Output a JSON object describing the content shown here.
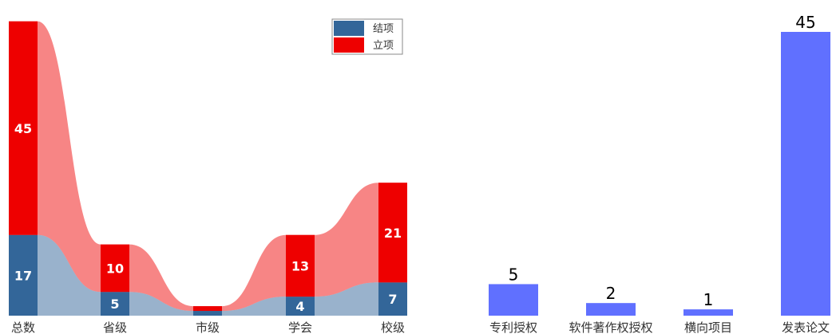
{
  "chart_data": [
    {
      "type": "bar",
      "stacked": true,
      "connected_smooth_ribbons": true,
      "categories": [
        "总数",
        "省级",
        "市级",
        "学会",
        "校级"
      ],
      "series": [
        {
          "name": "结项",
          "color": "#336699",
          "values": [
            17,
            5,
            1,
            4,
            7
          ]
        },
        {
          "name": "立项",
          "color": "#ee0000",
          "values": [
            45,
            10,
            1,
            13,
            21
          ]
        }
      ],
      "series_labels": [
        [
          "17",
          "5",
          "",
          "4",
          "7"
        ],
        [
          "45",
          "10",
          "",
          "13",
          "21"
        ]
      ],
      "legend": {
        "placement": "top-right",
        "entries": [
          "结项",
          "立项"
        ]
      },
      "grid": false
    },
    {
      "type": "bar",
      "categories": [
        "专利授权",
        "软件著作权授权",
        "横向项目",
        "发表论文"
      ],
      "values": [
        5,
        2,
        1,
        45
      ],
      "value_labels": [
        "5",
        "2",
        "1",
        "45"
      ],
      "color": "#6070ff",
      "grid": false
    }
  ]
}
